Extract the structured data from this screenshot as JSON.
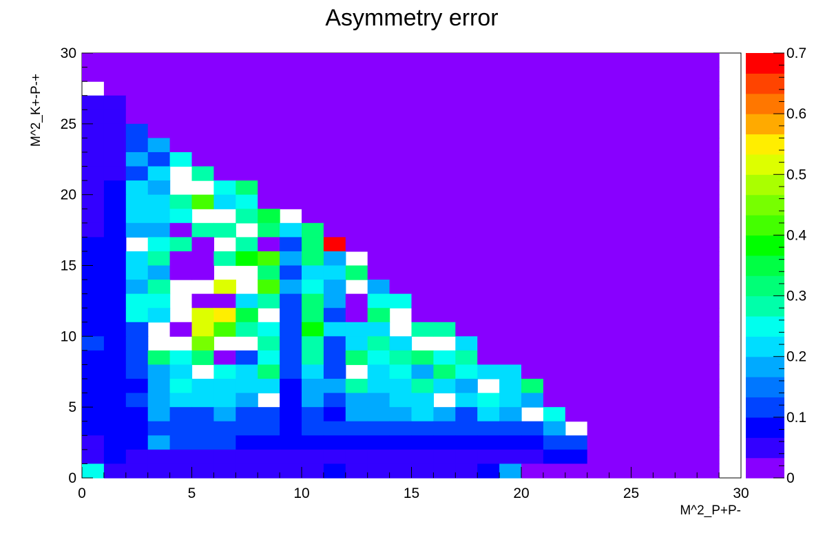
{
  "chart_data": {
    "type": "heatmap",
    "title": "Asymmetry error",
    "xlabel": "M^2_P+P-",
    "ylabel": "M^2_K+-P-+",
    "xlim": [
      0,
      30
    ],
    "ylim": [
      0,
      30
    ],
    "x_ticks": [
      "0",
      "5",
      "10",
      "15",
      "20",
      "25",
      "30"
    ],
    "y_ticks": [
      "0",
      "5",
      "10",
      "15",
      "20",
      "25",
      "30"
    ],
    "bin_width": 1,
    "binned_range": [
      0,
      29
    ],
    "empty_marker": "-1",
    "colorbar": {
      "min": 0,
      "max": 0.7,
      "ticks": [
        "0",
        "0.1",
        "0.2",
        "0.3",
        "0.4",
        "0.5",
        "0.6",
        "0.7"
      ],
      "palette": [
        "#8800ff",
        "#3300ff",
        "#0000ff",
        "#0044ff",
        "#0077ff",
        "#00aaff",
        "#00ddff",
        "#00ffee",
        "#00ffaa",
        "#00ff77",
        "#00ff44",
        "#00ff00",
        "#44ff00",
        "#77ff00",
        "#aaff00",
        "#ddff00",
        "#ffee00",
        "#ffaa00",
        "#ff7700",
        "#ff4400",
        "#ff0000"
      ]
    },
    "grid": false,
    "rows_top_to_bottom": [
      "0,0,0,0,0,0,0,0,0,0,0,0,0,0,0,0,0,0,0,0,0,0,0,0,0,0,0,0,0",
      "0,0,0,0,0,0,0,0,0,0,0,0,0,0,0,0,0,0,0,0,0,0,0,0,0,0,0,0,0",
      "-1,0,0,0,0,0,0,0,0,0,0,0,0,0,0,0,0,0,0,0,0,0,0,0,0,0,0,0,0",
      "0.035,0.035,0,0,0,0,0,0,0,0,0,0,0,0,0,0,0,0,0,0,0,0,0,0,0,0,0,0,0",
      "0.035,0.035,0,0,0,0,0,0,0,0,0,0,0,0,0,0,0,0,0,0,0,0,0,0,0,0,0,0,0",
      "0.035,0.035,0.10,0,0,0,0,0,0,0,0,0,0,0,0,0,0,0,0,0,0,0,0,0,0,0,0,0,0",
      "0.035,0.035,0.10,0.17,0,0,0,0,0,0,0,0,0,0,0,0,0,0,0,0,0,0,0,0,0,0,0,0,0",
      "0.035,0.035,0.17,0.10,0.25,0,0,0,0,0,0,0,0,0,0,0,0,0,0,0,0,0,0,0,0,0,0,0,0",
      "0.035,0.035,0.10,0.20,-1,0.27,0,0,0,0,0,0,0,0,0,0,0,0,0,0,0,0,0,0,0,0,0,0,0",
      "0.035,0.07,0.20,0.17,-1,-1,0.25,0.32,0,0,0,0,0,0,0,0,0,0,0,0,0,0,0,0,0,0,0,0,0",
      "0.035,0.07,0.20,0.20,0.27,0.42,0.20,0.25,0,0,0,0,0,0,0,0,0,0,0,0,0,0,0,0,0,0,0,0,0",
      "0.035,0.07,0.20,0.20,0.25,-1,-1,0.27,0.35,-1,0,0,0,0,0,0,0,0,0,0,0,0,0,0,0,0,0,0,0",
      "0.035,0.07,0.17,0.17,0,0.27,0.27,-1,0.32,0.20,0.32,0,0,0,0,0,0,0,0,0,0,0,0,0,0,0,0,0,0",
      "0.07,0.07,-1,0.25,0.27,0,-1,0.27,0,0.10,0.32,0.7,0,0,0,0,0,0,0,0,0,0,0,0,0,0,0,0,0",
      "0.07,0.07,0.20,0.27,0,0,0.27,0.37,0.40,0.17,0.32,0.17,-1,0,0,0,0,0,0,0,0,0,0,0,0,0,0,0,0",
      "0.07,0.07,0.20,0.17,0,0,-1,-1,0.32,0.10,0.20,0.20,0.32,0,0,0,0,0,0,0,0,0,0,0,0,0,0,0,0",
      "0.07,0.07,0.17,0.27,-1,-1,0.52,-1,0.40,0.17,0.25,0.17,-1,0.17,0,0,0,0,0,0,0,0,0,0,0,0,0,0,0",
      "0.07,0.07,0.25,0.25,-1,0,0,0.20,0.27,0.10,0.32,0.17,0,0.25,0.25,0,0,0,0,0,0,0,0,0,0,0,0,0,0",
      "0.07,0.07,0.25,0.20,-1,0.53,0.55,0.35,-1,0.10,0.32,0.10,0,0.32,-1,0,0,0,0,0,0,0,0,0,0,0,0,0,0",
      "0.07,0.07,0.10,-1,0,0.53,0.40,0.27,0.25,0.10,0.37,0.20,0.20,0.20,-1,0.27,0.27,0,0,0,0,0,0,0,0,0,0,0,0",
      "0.10,0.07,0.10,-1,-1,0.45,-1,-1,0.27,0.10,0.27,0.10,0.20,0.27,0.20,-1,-1,0.20,0,0,0,0,0,0,0,0,0,0,0",
      "0.07,0.07,0.10,0.32,0.25,0.32,0,0.10,0.25,0.10,0.27,0.10,0.32,0.25,0.27,0.32,0.25,0.27,0,0,0,0,0,0,0,0,0,0,0",
      "0.07,0.07,0.10,0.17,0.20,-1,0.25,0.20,0.30,0.10,0.20,0.10,-1,0.20,0.25,0.17,0.32,0.25,0.20,0.20,0,0,0,0,0,0,0,0,0",
      "0.07,0.07,0.07,0.17,0.25,0.20,0.20,0.20,0.20,0.07,0.17,0.17,0.27,0.20,0.20,0.27,0.20,0.17,-1,0.20,0.32,0,0,0,0,0,0,0,0",
      "0.07,0.07,0.10,0.17,0.20,0.20,0.20,0.17,-1,0.07,0.17,0.10,0.17,0.17,0.20,0.20,-1,0.20,0.25,0.20,0.17,0,0,0,0,0,0,0,0",
      "0.07,0.07,0.07,0.17,0.10,0.10,0.17,0.10,0.10,0.07,0.10,0.07,0.17,0.17,0.17,0.20,0.17,0.10,0.20,0.17,-1,0.25,0,0,0,0,0,0,0",
      "0.07,0.07,0.07,0.10,0.10,0.10,0.10,0.10,0.10,0.07,0.10,0.10,0.10,0.10,0.10,0.10,0.10,0.10,0.10,0.10,0.10,0.17,-1,0,0,0,0,0,0",
      "0.035,0.07,0.07,0.17,0.10,0.10,0.10,0.07,0.07,0.07,0.07,0.07,0.07,0.07,0.07,0.07,0.07,0.07,0.07,0.07,0.07,0.10,0.10,0,0,0,0,0,0",
      "0.035,0.07,0.035,0.035,0.035,0.035,0.035,0.035,0.035,0.035,0.035,0.035,0.035,0.035,0.035,0.035,0.035,0.035,0.035,0.035,0.035,0.07,0.07,0,0,0,0,0,0",
      "0.25,0.035,0.035,0.035,0.035,0.035,0.035,0.035,0.035,0.035,0.035,0.07,0.035,0.035,0.035,0.035,0.035,0.035,0.07,0.17,0,0,0,0,0,0,0,0,0"
    ]
  }
}
